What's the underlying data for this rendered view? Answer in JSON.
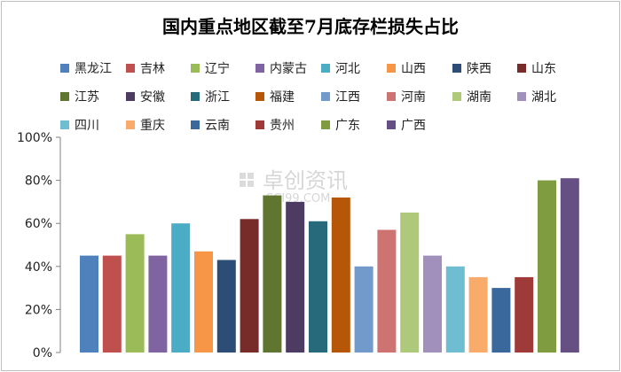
{
  "chart_data": {
    "type": "bar",
    "title": "国内重点地区截至7月底存栏损失占比",
    "categories": [
      "黑龙江",
      "吉林",
      "辽宁",
      "内蒙古",
      "河北",
      "山西",
      "陕西",
      "山东",
      "江苏",
      "安徽",
      "浙江",
      "福建",
      "江西",
      "河南",
      "湖南",
      "湖北",
      "四川",
      "重庆",
      "云南",
      "贵州",
      "广东",
      "广西"
    ],
    "values": [
      0.45,
      0.45,
      0.55,
      0.45,
      0.6,
      0.47,
      0.43,
      0.62,
      0.73,
      0.7,
      0.61,
      0.72,
      0.4,
      0.57,
      0.65,
      0.45,
      0.4,
      0.35,
      0.3,
      0.35,
      0.8,
      0.81
    ],
    "colors": [
      "#4F81BD",
      "#C0504D",
      "#9BBB59",
      "#8064A2",
      "#4BACC6",
      "#F79646",
      "#2C4D75",
      "#772C2A",
      "#5F7530",
      "#4D3B62",
      "#276A7C",
      "#B65708",
      "#729ACA",
      "#CD7371",
      "#AFC97A",
      "#A18FBC",
      "#6FBDD1",
      "#F9AB6B",
      "#3A679C",
      "#9E3B38",
      "#7F9D40",
      "#664F82"
    ],
    "yticks": [
      "0%",
      "20%",
      "40%",
      "60%",
      "80%",
      "100%"
    ],
    "ylim": [
      0,
      1
    ],
    "grid": false,
    "legend_position": "top"
  },
  "watermark": {
    "brand": "卓创资讯",
    "site": "SCI99.COM"
  }
}
